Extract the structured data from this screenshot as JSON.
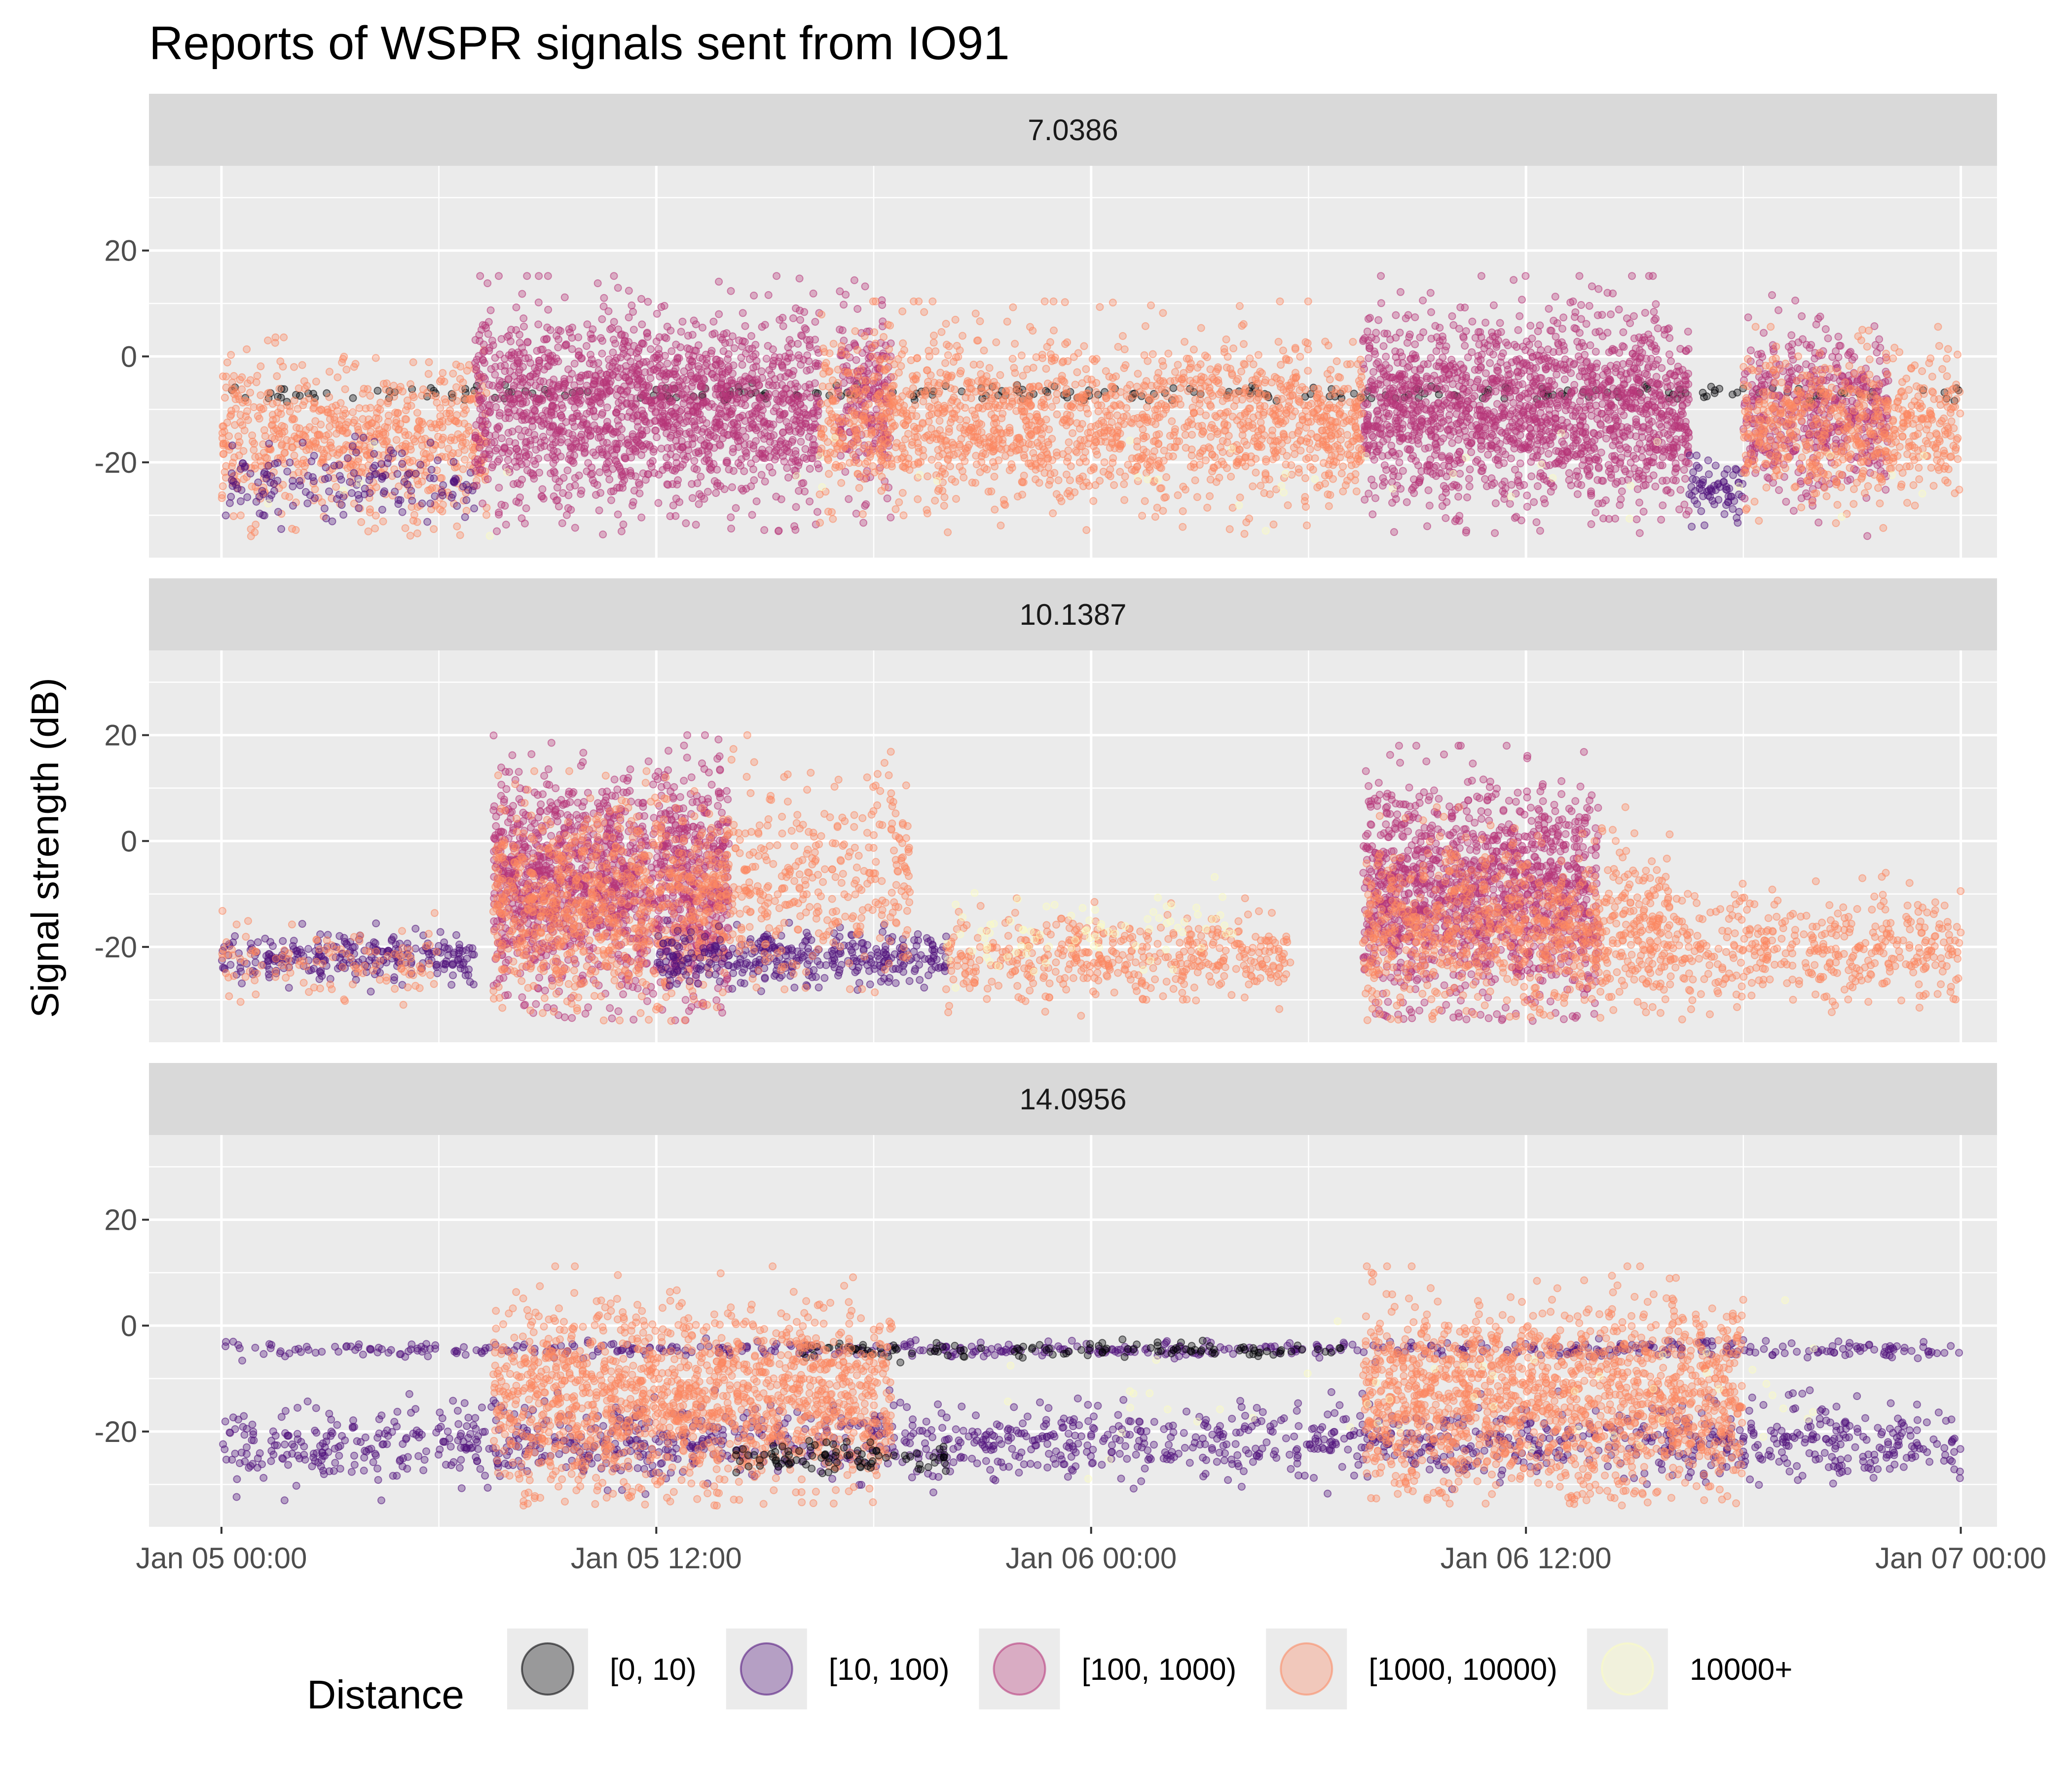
{
  "chart_data": {
    "type": "scatter",
    "title": "Reports of WSPR signals sent from IO91",
    "xlabel": "",
    "ylabel": "Signal strength (dB)",
    "x_type": "datetime",
    "xlim": [
      "2022-01-04T22:00",
      "2022-01-07T01:00"
    ],
    "ylim": [
      -38,
      36
    ],
    "x_ticks": [
      {
        "value": "2022-01-05T00:00",
        "label": "Jan 05 00:00"
      },
      {
        "value": "2022-01-05T12:00",
        "label": "Jan 05 12:00"
      },
      {
        "value": "2022-01-06T00:00",
        "label": "Jan 06 00:00"
      },
      {
        "value": "2022-01-06T12:00",
        "label": "Jan 06 12:00"
      },
      {
        "value": "2022-01-07T00:00",
        "label": "Jan 07 00:00"
      }
    ],
    "y_ticks": [
      {
        "value": 20,
        "label": "20"
      },
      {
        "value": 0,
        "label": "0"
      },
      {
        "value": -20,
        "label": "-20"
      }
    ],
    "grid": true,
    "legend": {
      "title": "Distance",
      "position": "bottom",
      "entries": [
        {
          "label": "[0, 10)",
          "color": "#000004"
        },
        {
          "label": "[10, 100)",
          "color": "#51127C"
        },
        {
          "label": "[100, 1000)",
          "color": "#B63679"
        },
        {
          "label": "[1000, 10000)",
          "color": "#FB8861"
        },
        {
          "label": "10000+",
          "color": "#FCFDBF"
        }
      ]
    },
    "point_opacity": 0.35,
    "facets": [
      {
        "label": "7.0386",
        "clusters": [
          {
            "color_index": 0,
            "x_start": "2022-01-05T00:00",
            "x_end": "2022-01-07T00:00",
            "y_center": -7,
            "y_spread": 1.5,
            "count": 240
          },
          {
            "color_index": 3,
            "x_start": "2022-01-05T00:00",
            "x_end": "2022-01-05T07:20",
            "y_center": -16,
            "y_spread": 14,
            "count": 700
          },
          {
            "color_index": 1,
            "x_start": "2022-01-05T00:00",
            "x_end": "2022-01-05T07:00",
            "y_center": -24,
            "y_spread": 7,
            "count": 160
          },
          {
            "color_index": 2,
            "x_start": "2022-01-05T07:00",
            "x_end": "2022-01-05T16:30",
            "y_center": -10,
            "y_spread": 18,
            "count": 1700
          },
          {
            "color_index": 2,
            "x_start": "2022-01-05T17:00",
            "x_end": "2022-01-05T18:30",
            "y_center": -8,
            "y_spread": 17,
            "count": 220
          },
          {
            "color_index": 3,
            "x_start": "2022-01-05T16:30",
            "x_end": "2022-01-06T06:00",
            "y_center": -12,
            "y_spread": 16,
            "count": 1500
          },
          {
            "color_index": 2,
            "x_start": "2022-01-06T07:30",
            "x_end": "2022-01-06T16:30",
            "y_center": -10,
            "y_spread": 18,
            "count": 1700
          },
          {
            "color_index": 3,
            "x_start": "2022-01-06T06:00",
            "x_end": "2022-01-06T07:30",
            "y_center": -14,
            "y_spread": 12,
            "count": 180
          },
          {
            "color_index": 1,
            "x_start": "2022-01-06T16:30",
            "x_end": "2022-01-06T18:00",
            "y_center": -25,
            "y_spread": 6,
            "count": 70
          },
          {
            "color_index": 2,
            "x_start": "2022-01-06T18:00",
            "x_end": "2022-01-06T22:00",
            "y_center": -10,
            "y_spread": 16,
            "count": 500
          },
          {
            "color_index": 3,
            "x_start": "2022-01-06T18:00",
            "x_end": "2022-01-07T00:00",
            "y_center": -14,
            "y_spread": 14,
            "count": 600
          },
          {
            "color_index": 4,
            "x_start": "2022-01-05T00:00",
            "x_end": "2022-01-07T00:00",
            "y_center": -22,
            "y_spread": 10,
            "count": 40
          }
        ]
      },
      {
        "label": "10.1387",
        "clusters": [
          {
            "color_index": 1,
            "x_start": "2022-01-05T00:00",
            "x_end": "2022-01-05T07:00",
            "y_center": -22,
            "y_spread": 5,
            "count": 260
          },
          {
            "color_index": 3,
            "x_start": "2022-01-05T00:00",
            "x_end": "2022-01-05T06:00",
            "y_center": -23,
            "y_spread": 7,
            "count": 120
          },
          {
            "color_index": 2,
            "x_start": "2022-01-05T07:30",
            "x_end": "2022-01-05T14:00",
            "y_center": -8,
            "y_spread": 20,
            "count": 1500
          },
          {
            "color_index": 3,
            "x_start": "2022-01-05T07:30",
            "x_end": "2022-01-05T14:00",
            "y_center": -12,
            "y_spread": 18,
            "count": 900
          },
          {
            "color_index": 1,
            "x_start": "2022-01-05T12:00",
            "x_end": "2022-01-05T20:00",
            "y_center": -22,
            "y_spread": 5,
            "count": 360
          },
          {
            "color_index": 3,
            "x_start": "2022-01-05T14:00",
            "x_end": "2022-01-05T19:00",
            "y_center": -8,
            "y_spread": 20,
            "count": 350
          },
          {
            "color_index": 3,
            "x_start": "2022-01-05T20:00",
            "x_end": "2022-01-06T05:30",
            "y_center": -22,
            "y_spread": 8,
            "count": 450
          },
          {
            "color_index": 4,
            "x_start": "2022-01-05T20:00",
            "x_end": "2022-01-06T04:00",
            "y_center": -18,
            "y_spread": 8,
            "count": 80
          },
          {
            "color_index": 2,
            "x_start": "2022-01-06T07:30",
            "x_end": "2022-01-06T14:00",
            "y_center": -10,
            "y_spread": 20,
            "count": 1400
          },
          {
            "color_index": 3,
            "x_start": "2022-01-06T07:30",
            "x_end": "2022-01-06T16:00",
            "y_center": -16,
            "y_spread": 16,
            "count": 900
          },
          {
            "color_index": 3,
            "x_start": "2022-01-06T16:00",
            "x_end": "2022-01-07T00:00",
            "y_center": -20,
            "y_spread": 10,
            "count": 420
          }
        ]
      },
      {
        "label": "14.0956",
        "clusters": [
          {
            "color_index": 1,
            "x_start": "2022-01-05T00:00",
            "x_end": "2022-01-07T00:00",
            "y_center": -4.5,
            "y_spread": 1.5,
            "count": 520
          },
          {
            "color_index": 0,
            "x_start": "2022-01-05T16:00",
            "x_end": "2022-01-06T07:00",
            "y_center": -4.5,
            "y_spread": 1.5,
            "count": 120
          },
          {
            "color_index": 1,
            "x_start": "2022-01-05T00:00",
            "x_end": "2022-01-07T00:00",
            "y_center": -22,
            "y_spread": 7,
            "count": 1500
          },
          {
            "color_index": 3,
            "x_start": "2022-01-05T07:30",
            "x_end": "2022-01-05T18:30",
            "y_center": -14,
            "y_spread": 18,
            "count": 1500
          },
          {
            "color_index": 0,
            "x_start": "2022-01-05T14:00",
            "x_end": "2022-01-05T20:00",
            "y_center": -25,
            "y_spread": 3,
            "count": 90
          },
          {
            "color_index": 3,
            "x_start": "2022-01-06T07:30",
            "x_end": "2022-01-06T18:00",
            "y_center": -14,
            "y_spread": 18,
            "count": 1500
          },
          {
            "color_index": 4,
            "x_start": "2022-01-05T20:00",
            "x_end": "2022-01-06T20:00",
            "y_center": -12,
            "y_spread": 12,
            "count": 50
          }
        ]
      }
    ]
  }
}
